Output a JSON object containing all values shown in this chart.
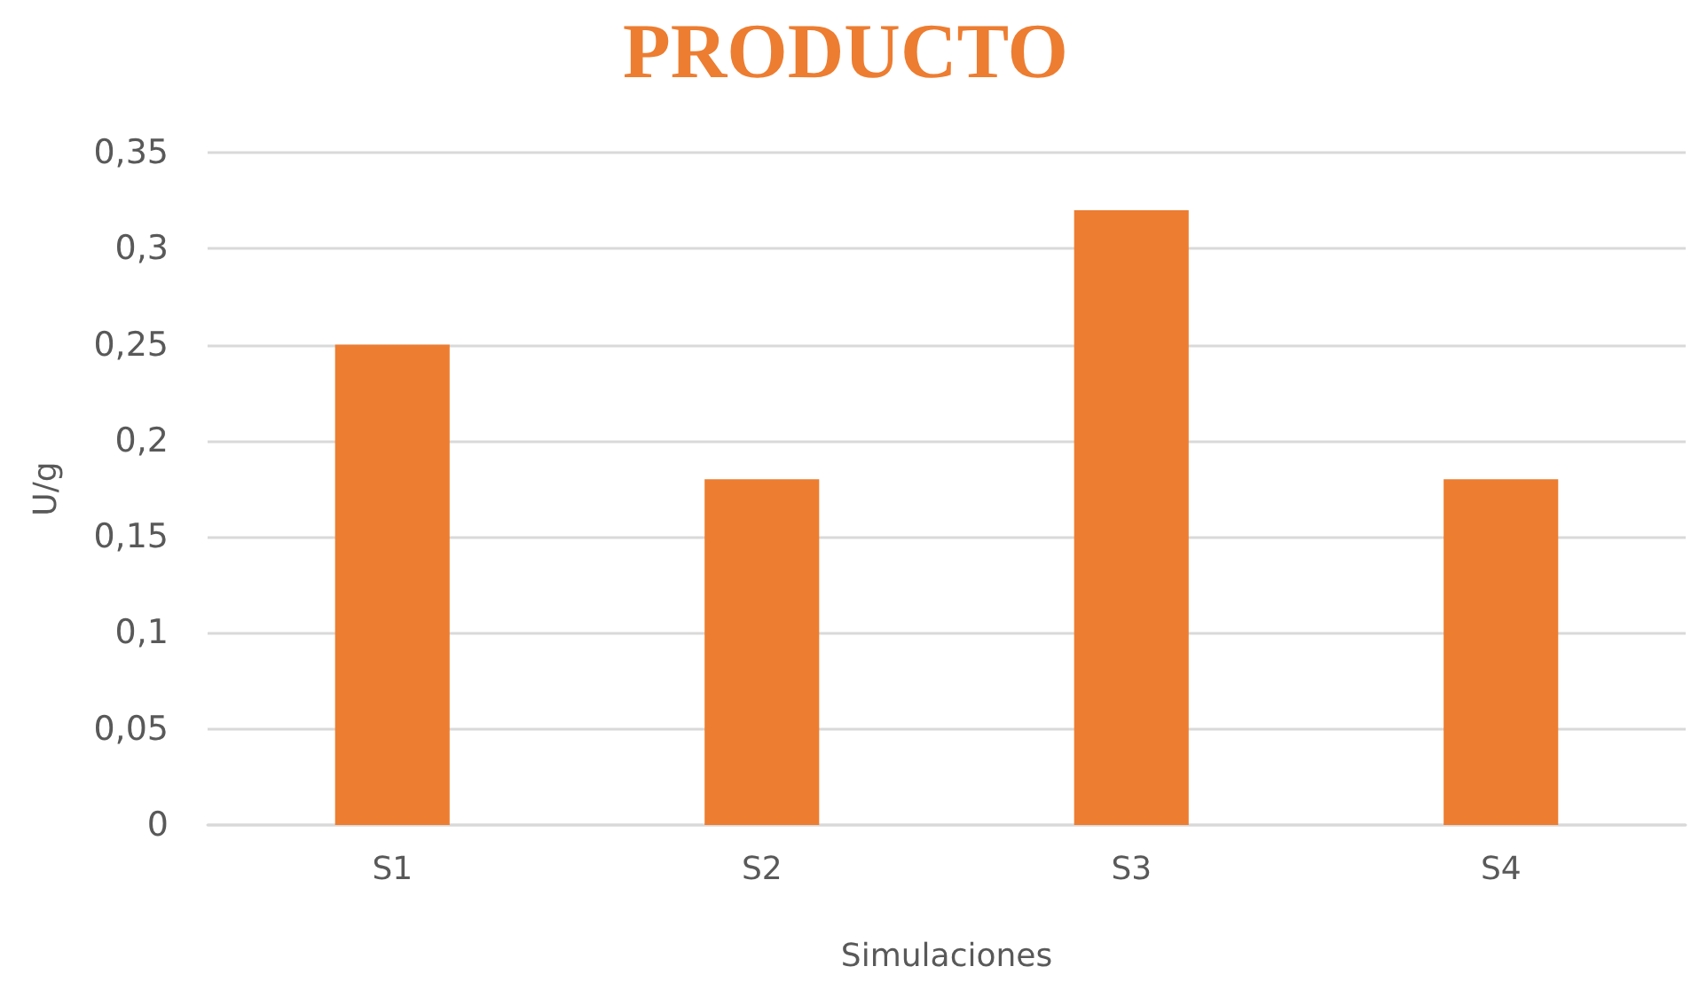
{
  "chart_data": {
    "type": "bar",
    "title": "PRODUCTO",
    "xlabel": "Simulaciones",
    "ylabel": "U/g",
    "categories": [
      "S1",
      "S2",
      "S3",
      "S4"
    ],
    "values": [
      0.25,
      0.18,
      0.32,
      0.18
    ],
    "color": "#ed7d31",
    "ylim": [
      0,
      0.35
    ],
    "yticks": [
      {
        "value": 0,
        "label": "0"
      },
      {
        "value": 0.05,
        "label": "0,05"
      },
      {
        "value": 0.1,
        "label": "0,1"
      },
      {
        "value": 0.15,
        "label": "0,15"
      },
      {
        "value": 0.2,
        "label": "0,2"
      },
      {
        "value": 0.25,
        "label": "0,25"
      },
      {
        "value": 0.3,
        "label": "0,3"
      },
      {
        "value": 0.35,
        "label": "0,35"
      }
    ],
    "grid": "y"
  }
}
